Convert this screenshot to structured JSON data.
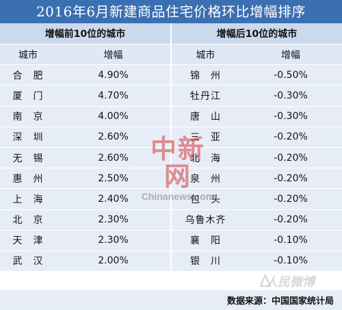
{
  "title": "2016年6月新建商品住宅价格环比增幅排序",
  "sections": {
    "left": "增幅前10位的城市",
    "right": "增幅后10位的城市"
  },
  "headers": {
    "city": "城市",
    "growth": "增幅"
  },
  "top10": [
    {
      "city": "合　肥",
      "growth": "4.90%"
    },
    {
      "city": "厦　门",
      "growth": "4.70%"
    },
    {
      "city": "南　京",
      "growth": "4.00%"
    },
    {
      "city": "深　圳",
      "growth": "2.60%"
    },
    {
      "city": "无　锡",
      "growth": "2.60%"
    },
    {
      "city": "惠　州",
      "growth": "2.50%"
    },
    {
      "city": "上　海",
      "growth": "2.40%"
    },
    {
      "city": "北　京",
      "growth": "2.30%"
    },
    {
      "city": "天　津",
      "growth": "2.30%"
    },
    {
      "city": "武　汉",
      "growth": "2.00%"
    }
  ],
  "bottom10": [
    {
      "city": "锦　州",
      "growth": "-0.50%"
    },
    {
      "city": "牡丹江",
      "growth": "-0.30%"
    },
    {
      "city": "唐　山",
      "growth": "-0.30%"
    },
    {
      "city": "三　亚",
      "growth": "-0.20%"
    },
    {
      "city": "北　海",
      "growth": "-0.20%"
    },
    {
      "city": "泉　州",
      "growth": "-0.20%"
    },
    {
      "city": "包　头",
      "growth": "-0.20%"
    },
    {
      "city": "乌鲁木齐",
      "growth": "-0.20%"
    },
    {
      "city": "襄　阳",
      "growth": "-0.10%"
    },
    {
      "city": "银　川",
      "growth": "-0.10%"
    }
  ],
  "source": "数据来源：中国国家统计局",
  "watermark": {
    "cn": "中新网",
    "en": "Chinanews.com",
    "corner": "人民微博"
  },
  "colors": {
    "title_bg": "#3a6fb1",
    "section_bg": "#cbd9ec",
    "row_bg": "#e6edf7"
  }
}
